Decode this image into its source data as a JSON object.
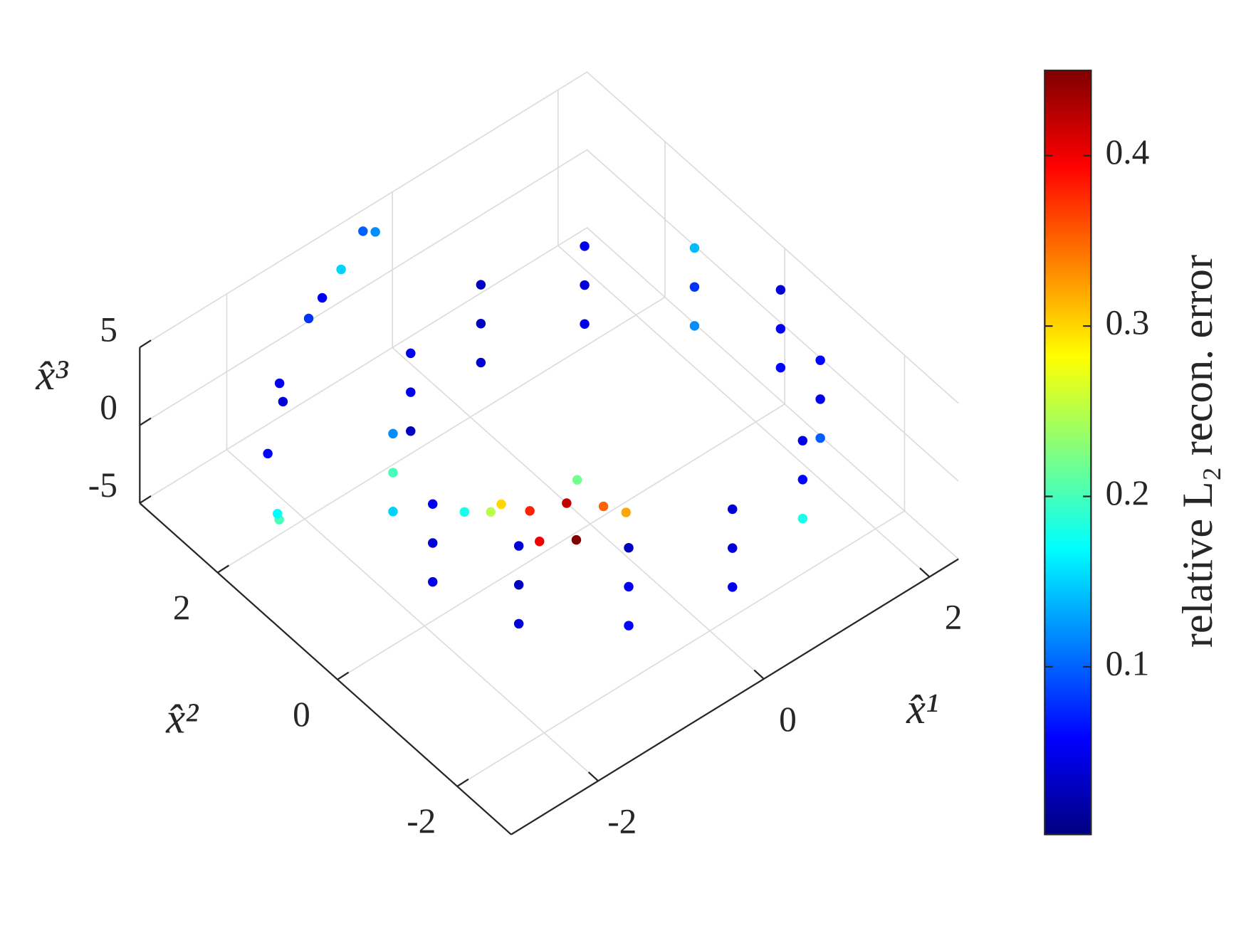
{
  "chart_data": {
    "type": "scatter3d",
    "xlabel": "x̂¹",
    "ylabel": "x̂²",
    "zlabel": "x̂³",
    "colorbar_label": "relative L₂ recon. error",
    "colormap": "jet",
    "grid": true,
    "xlim": [
      -3.05,
      2.35
    ],
    "ylim": [
      -2.9,
      3.3
    ],
    "zlim": [
      -5,
      5
    ],
    "xticks": [
      -2,
      0,
      2
    ],
    "yticks": [
      -2,
      0,
      2
    ],
    "zticks": [
      -5,
      0,
      5
    ],
    "clim": [
      0.0016,
      0.45
    ],
    "cticks": [
      0.1,
      0.2,
      0.3,
      0.4
    ],
    "x": [
      2.3,
      2.02,
      1.25,
      0.2,
      -0.85,
      -1.62,
      -1.9,
      -1.62,
      -0.85,
      0.2,
      1.25,
      2.02,
      2.3,
      2.02,
      1.25,
      0.2,
      -0.85,
      -1.62,
      -1.9,
      -1.62,
      -0.85,
      0.2,
      1.25,
      2.02,
      2.3,
      2.02,
      1.25,
      0.2,
      -0.85,
      -1.62,
      -1.9,
      -1.62,
      -0.85,
      0.2,
      1.25,
      2.02,
      -2.56,
      -2.3,
      -1.84,
      -1.3,
      -0.8,
      -0.38,
      -2.4,
      -1.9,
      -1.1,
      -0.5,
      -0.5,
      -0.8,
      -0.2,
      -1.0,
      -0.6,
      -1.2,
      -0.3,
      -0.9,
      0.0,
      -1.3
    ],
    "y": [
      0,
      1.05,
      1.82,
      2.1,
      1.82,
      1.05,
      0,
      -1.05,
      -1.82,
      -2.1,
      -1.82,
      -1.05,
      0,
      1.05,
      1.82,
      2.1,
      1.82,
      1.05,
      0,
      -1.05,
      -1.82,
      -2.1,
      -1.82,
      -1.05,
      0,
      1.05,
      1.82,
      2.1,
      1.82,
      1.05,
      0,
      -1.05,
      -1.82,
      -2.1,
      -1.82,
      -1.05,
      1.65,
      2.2,
      2.64,
      2.9,
      3.05,
      3.06,
      1.9,
      2.5,
      2.95,
      3.1,
      -0.3,
      -0.1,
      -0.5,
      0.1,
      -0.6,
      0.0,
      -0.2,
      -0.4,
      -0.6,
      0.3
    ],
    "z": [
      -2.5,
      -2.5,
      -2.5,
      -2.5,
      -2.5,
      -2.5,
      -2.5,
      -2.5,
      -2.5,
      -2.5,
      -2.5,
      -2.5,
      0,
      0,
      0,
      0,
      0,
      0,
      0,
      0,
      0,
      0,
      0,
      0,
      2.5,
      2.5,
      2.5,
      2.5,
      2.5,
      2.5,
      2.5,
      2.5,
      2.5,
      2.5,
      2.5,
      2.5,
      -2,
      -0.5,
      1,
      2.5,
      3.5,
      4.5,
      -3,
      0.5,
      3.0,
      4.8,
      -1,
      -1.2,
      -1.5,
      -0.8,
      -2,
      -0.3,
      -0.5,
      -1.8,
      -2.2,
      -1.0
    ],
    "c": [
      0.06,
      0.12,
      0.05,
      0.04,
      0.03,
      0.15,
      0.05,
      0.04,
      0.06,
      0.05,
      0.18,
      0.1,
      0.05,
      0.08,
      0.04,
      0.03,
      0.05,
      0.2,
      0.04,
      0.03,
      0.05,
      0.04,
      0.06,
      0.05,
      0.04,
      0.14,
      0.05,
      0.03,
      0.05,
      0.12,
      0.05,
      0.04,
      0.03,
      0.04,
      0.05,
      0.06,
      0.2,
      0.06,
      0.05,
      0.08,
      0.15,
      0.12,
      0.17,
      0.04,
      0.05,
      0.1,
      0.42,
      0.38,
      0.35,
      0.3,
      0.45,
      0.25,
      0.22,
      0.4,
      0.32,
      0.18
    ]
  }
}
